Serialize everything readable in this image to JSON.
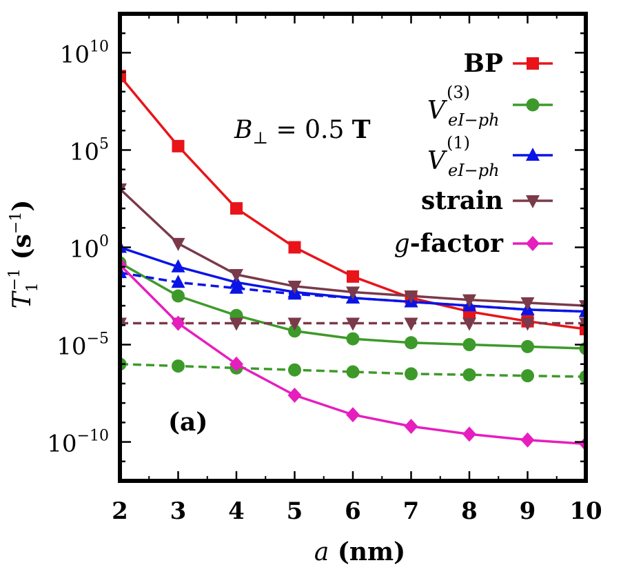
{
  "chart_data": {
    "type": "line",
    "xlabel": "a (nm)",
    "ylabel": "T1^-1 (s^-1)",
    "yscale": "log",
    "xlim": [
      2,
      10
    ],
    "ylim": [
      -12,
      12
    ],
    "x_ticks": [
      2,
      3,
      4,
      5,
      6,
      7,
      8,
      9,
      10
    ],
    "y_ticks": [
      {
        "exp": 10,
        "label": "10",
        "sup": "10"
      },
      {
        "exp": 5,
        "label": "10",
        "sup": "5"
      },
      {
        "exp": 0,
        "label": "10",
        "sup": "0"
      },
      {
        "exp": -5,
        "label": "10",
        "sup": "−5"
      },
      {
        "exp": -10,
        "label": "10",
        "sup": "−10"
      }
    ],
    "annotation": "B⊥ = 0.5 T",
    "panel_label": "(a)",
    "x": [
      2,
      3,
      4,
      5,
      6,
      7,
      8,
      9,
      10
    ],
    "series": [
      {
        "name": "BP",
        "marker": "square",
        "color": "#e8141a",
        "dashed": false,
        "log10_values": [
          8.8,
          5.2,
          2.0,
          0.0,
          -1.5,
          -2.6,
          -3.3,
          -3.8,
          -4.2
        ]
      },
      {
        "name": "V_eI-ph^(3)",
        "marker": "circle",
        "color": "#3d9a2a",
        "dashed": false,
        "log10_values": [
          -0.8,
          -2.5,
          -3.5,
          -4.3,
          -4.7,
          -4.9,
          -5.0,
          -5.1,
          -5.2
        ]
      },
      {
        "name": "",
        "marker": "circle",
        "color": "#3d9a2a",
        "dashed": true,
        "log10_values": [
          -6.0,
          -6.1,
          -6.2,
          -6.3,
          -6.4,
          -6.5,
          -6.55,
          -6.6,
          -6.65
        ]
      },
      {
        "name": "V_eI-ph^(1)",
        "marker": "triangle-up",
        "color": "#0a14e6",
        "dashed": false,
        "log10_values": [
          0.0,
          -1.0,
          -1.8,
          -2.3,
          -2.6,
          -2.8,
          -3.0,
          -3.2,
          -3.3
        ]
      },
      {
        "name": "",
        "marker": "triangle-up",
        "color": "#0a14e6",
        "dashed": true,
        "log10_values": [
          -1.3,
          -1.8,
          -2.1,
          -2.4,
          -2.6,
          -2.8,
          -3.0,
          -3.2,
          -3.3
        ]
      },
      {
        "name": "strain",
        "marker": "triangle-down",
        "color": "#7a3a4a",
        "dashed": false,
        "log10_values": [
          3.0,
          0.2,
          -1.4,
          -2.0,
          -2.3,
          -2.5,
          -2.7,
          -2.85,
          -3.0
        ]
      },
      {
        "name": "",
        "marker": "triangle-down",
        "color": "#7a3a4a",
        "dashed": true,
        "log10_values": [
          -3.9,
          -3.9,
          -3.9,
          -3.9,
          -3.9,
          -3.9,
          -3.9,
          -3.9,
          -3.9
        ]
      },
      {
        "name": "g-factor",
        "marker": "diamond",
        "color": "#e61ebe",
        "dashed": false,
        "log10_values": [
          -0.9,
          -3.9,
          -6.0,
          -7.6,
          -8.6,
          -9.2,
          -9.6,
          -9.9,
          -10.1
        ]
      }
    ],
    "legend": [
      {
        "label": "BP",
        "marker": "square",
        "color": "#e8141a"
      },
      {
        "label": "V",
        "sub": "eI−ph",
        "sup": "(3)",
        "marker": "circle",
        "color": "#3d9a2a"
      },
      {
        "label": "V",
        "sub": "eI−ph",
        "sup": "(1)",
        "marker": "triangle-up",
        "color": "#0a14e6"
      },
      {
        "label": "strain",
        "marker": "triangle-down",
        "color": "#7a3a4a"
      },
      {
        "label": "g-factor",
        "marker": "diamond",
        "color": "#e61ebe"
      }
    ],
    "legend_position": "top-right"
  }
}
